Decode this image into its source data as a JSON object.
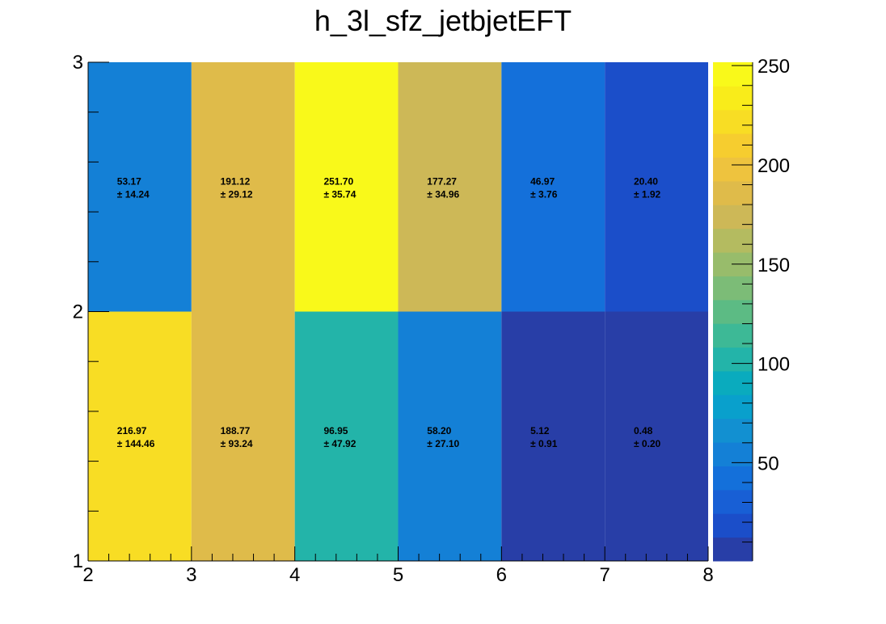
{
  "chart_data": {
    "type": "heatmap",
    "title": "h_3l_sfz_jetbjetEFT",
    "x_edges": [
      2,
      3,
      4,
      5,
      6,
      7,
      8
    ],
    "y_edges": [
      1,
      2,
      3
    ],
    "xlim": [
      2,
      8
    ],
    "ylim": [
      1,
      3
    ],
    "x_tick_labels": [
      "2",
      "3",
      "4",
      "5",
      "6",
      "7",
      "8"
    ],
    "y_tick_labels": [
      "1",
      "2",
      "3"
    ],
    "values": [
      [
        216.97,
        188.77,
        96.95,
        58.2,
        5.12,
        0.48
      ],
      [
        53.17,
        191.12,
        251.7,
        177.27,
        46.97,
        20.4
      ]
    ],
    "value_labels": [
      [
        "216.97",
        "188.77",
        "96.95",
        "58.20",
        "5.12",
        "0.48"
      ],
      [
        "53.17",
        "191.12",
        "251.70",
        "177.27",
        "46.97",
        "20.40"
      ]
    ],
    "error_labels": [
      [
        "± 144.46",
        "± 93.24",
        "± 47.92",
        "± 27.10",
        "± 0.91",
        "± 0.20"
      ],
      [
        "± 14.24",
        "± 29.12",
        "± 35.74",
        "± 34.96",
        "± 3.76",
        "± 1.92"
      ]
    ],
    "zlim": [
      0.48,
      251.7
    ],
    "colorbar_ticks": [
      50,
      100,
      150,
      200,
      250
    ],
    "colorbar_tick_labels": [
      "50",
      "100",
      "150",
      "200",
      "250"
    ],
    "palette": [
      "#283ea7",
      "#1b4ec9",
      "#185fd5",
      "#1470da",
      "#1480d6",
      "#1290d1",
      "#09a0cc",
      "#0aabbe",
      "#23b4a9",
      "#3db996",
      "#5cbb84",
      "#7cbc77",
      "#98bc6b",
      "#b4bb60",
      "#cdb857",
      "#dfbb4a",
      "#eec33e",
      "#f6cd2f",
      "#f8dd24",
      "#f9ec1a",
      "#f9f91a"
    ],
    "grid": false,
    "legend": "none"
  }
}
